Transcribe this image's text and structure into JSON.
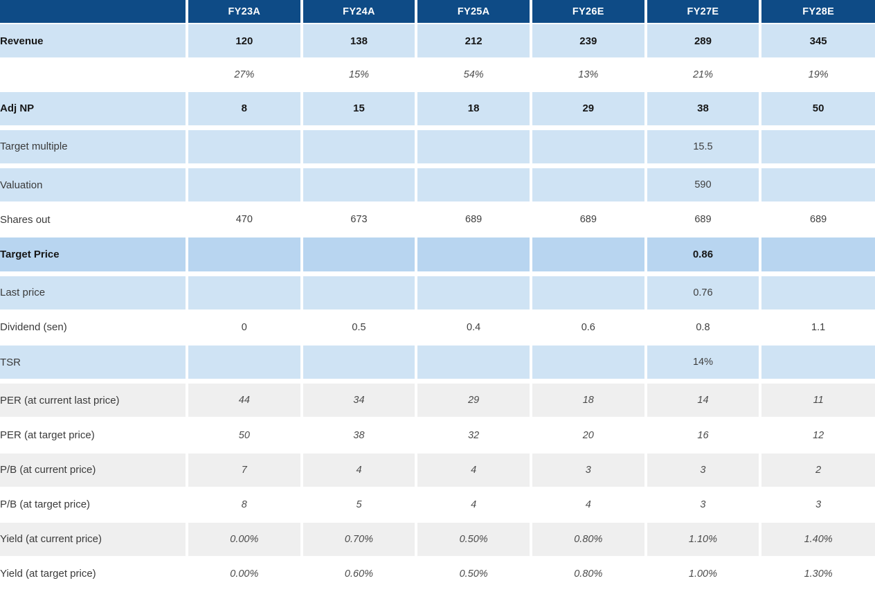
{
  "colors": {
    "header_bg": "#0e4b86",
    "header_text": "#ffffff",
    "row_light_blue": "#cfe3f4",
    "row_target_price_blue": "#b8d5f0",
    "row_grey": "#efefef",
    "bold_text": "#161616",
    "regular_text": "#3e3e3e",
    "italic_text": "#4b4b4b"
  },
  "table": {
    "columns": [
      "",
      "FY23A",
      "FY24A",
      "FY25A",
      "FY26E",
      "FY27E",
      "FY28E"
    ],
    "rows": [
      {
        "label": "Revenue",
        "style": "blue-bold",
        "values": [
          "120",
          "138",
          "212",
          "239",
          "289",
          "345"
        ]
      },
      {
        "label": "",
        "style": "white-italic",
        "values": [
          "27%",
          "15%",
          "54%",
          "13%",
          "21%",
          "19%"
        ]
      },
      {
        "label": "Adj NP",
        "style": "blue-bold",
        "values": [
          "8",
          "15",
          "18",
          "29",
          "38",
          "50"
        ]
      },
      {
        "label": "",
        "style": "spacer",
        "values": [
          "",
          "",
          "",
          "",
          "",
          ""
        ]
      },
      {
        "label": "Target multiple",
        "style": "blue",
        "values": [
          "",
          "",
          "",
          "",
          "15.5",
          ""
        ]
      },
      {
        "label": "",
        "style": "spacer",
        "values": [
          "",
          "",
          "",
          "",
          "",
          ""
        ]
      },
      {
        "label": "Valuation",
        "style": "blue",
        "values": [
          "",
          "",
          "",
          "",
          "590",
          ""
        ]
      },
      {
        "label": "Shares out",
        "style": "white",
        "values": [
          "470",
          "673",
          "689",
          "689",
          "689",
          "689"
        ]
      },
      {
        "label": "Target Price",
        "style": "blue-dark-bold",
        "values": [
          "",
          "",
          "",
          "",
          "0.86",
          ""
        ]
      },
      {
        "label": "",
        "style": "spacer",
        "values": [
          "",
          "",
          "",
          "",
          "",
          ""
        ]
      },
      {
        "label": "Last price",
        "style": "blue",
        "values": [
          "",
          "",
          "",
          "",
          "0.76",
          ""
        ]
      },
      {
        "label": "Dividend (sen)",
        "style": "white",
        "values": [
          "0",
          "0.5",
          "0.4",
          "0.6",
          "0.8",
          "1.1"
        ]
      },
      {
        "label": "TSR",
        "style": "blue",
        "values": [
          "",
          "",
          "",
          "",
          "14%",
          ""
        ]
      },
      {
        "label": "",
        "style": "spacer",
        "values": [
          "",
          "",
          "",
          "",
          "",
          ""
        ]
      },
      {
        "label": "PER (at current last price)",
        "style": "grey-italic",
        "values": [
          "44",
          "34",
          "29",
          "18",
          "14",
          "11"
        ]
      },
      {
        "label": "PER (at target price)",
        "style": "white-italic",
        "values": [
          "50",
          "38",
          "32",
          "20",
          "16",
          "12"
        ]
      },
      {
        "label": "P/B (at current price)",
        "style": "grey-italic",
        "values": [
          "7",
          "4",
          "4",
          "3",
          "3",
          "2"
        ]
      },
      {
        "label": "P/B (at target price)",
        "style": "white-italic",
        "values": [
          "8",
          "5",
          "4",
          "4",
          "3",
          "3"
        ]
      },
      {
        "label": "Yield (at current price)",
        "style": "grey-italic",
        "values": [
          "0.00%",
          "0.70%",
          "0.50%",
          "0.80%",
          "1.10%",
          "1.40%"
        ]
      },
      {
        "label": "Yield (at target price)",
        "style": "white-italic",
        "values": [
          "0.00%",
          "0.60%",
          "0.50%",
          "0.80%",
          "1.00%",
          "1.30%"
        ]
      }
    ]
  }
}
